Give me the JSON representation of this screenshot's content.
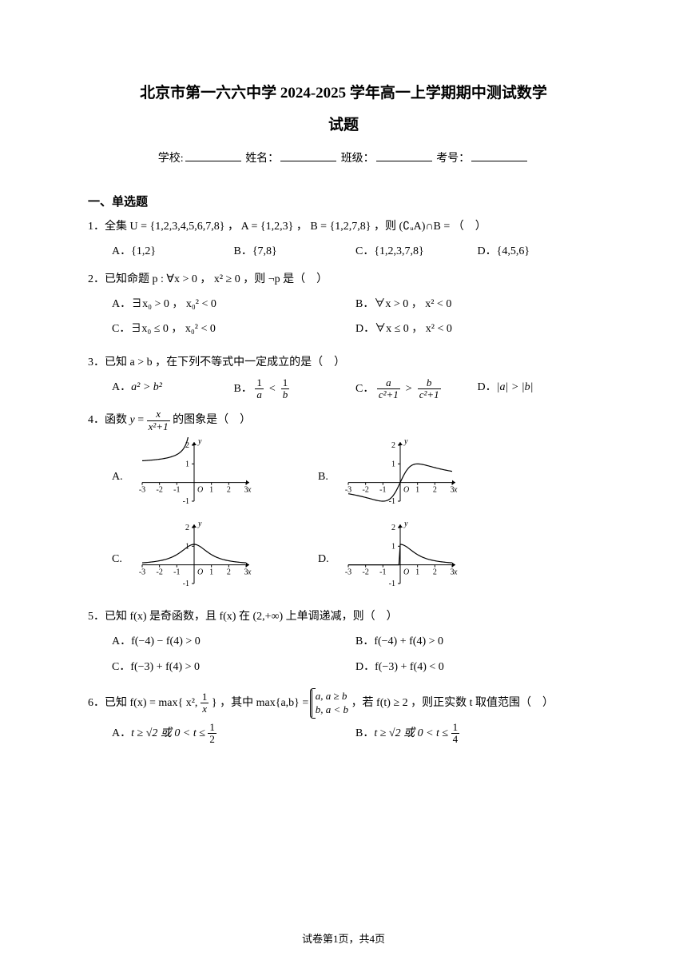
{
  "title": "北京市第一六六中学 2024-2025 学年高一上学期期中测试数学",
  "subtitle": "试题",
  "info": {
    "school_label": "学校:",
    "name_label": "姓名：",
    "class_label": "班级：",
    "exam_no_label": "考号："
  },
  "section1": "一、单选题",
  "q1": {
    "num": "1．",
    "text": "全集 U = {1,2,3,4,5,6,7,8} ， A = {1,2,3} ， B = {1,2,7,8} ，则 (∁ᵤA)∩B = （　）",
    "A": "A．{1,2}",
    "B": "B．{7,8}",
    "C": "C．{1,2,3,7,8}",
    "D": "D．{4,5,6}"
  },
  "q2": {
    "num": "2．",
    "text": "已知命题 p : ∀x > 0 ， x² ≥ 0 ，则 ¬p 是（　）",
    "A": "A．∃x₀ > 0 ， x₀² < 0",
    "B": "B．∀x > 0 ， x² < 0",
    "C": "C．∃x₀ ≤ 0 ， x₀² < 0",
    "D": "D．∀x ≤ 0 ， x² < 0"
  },
  "q3": {
    "num": "3．",
    "text": "已知 a > b ，在下列不等式中一定成立的是（　）",
    "A_label": "A．",
    "A_body": "a² > b²",
    "B_label": "B．",
    "C_label": "C．",
    "D_label": "D．",
    "D_body": "|a| > |b|"
  },
  "q4": {
    "num": "4．",
    "text_pre": "函数 ",
    "text_post": " 的图象是（　）",
    "A": "A.",
    "B": "B.",
    "C": "C.",
    "D": "D.",
    "graph": {
      "width": 150,
      "height": 90,
      "xrange": [
        -3,
        3
      ],
      "yrange": [
        -1,
        2
      ],
      "xticks": [
        -3,
        -2,
        -1,
        1,
        2,
        3
      ],
      "yticks": [
        -1,
        1,
        2
      ],
      "axis_color": "#000000",
      "line_color": "#000000",
      "line_width": 1.2,
      "fontsize": 10
    },
    "curves": {
      "A": "split_asymp",
      "B": "odd_rational",
      "C": "bell",
      "D": "half_bell"
    }
  },
  "q5": {
    "num": "5．",
    "text": "已知 f(x) 是奇函数，且 f(x) 在 (2,+∞) 上单调递减，则（　）",
    "A": "A．f(−4) − f(4) > 0",
    "B": "B．f(−4) + f(4) > 0",
    "C": "C．f(−3) + f(4) > 0",
    "D": "D．f(−3) + f(4) < 0"
  },
  "q6": {
    "num": "6．",
    "text_pre": "已知 f(x) = max{ x², ",
    "text_mid": " } ，其中 max{a,b} = ",
    "text_post": " ，若 f(t) ≥ 2 ，则正实数 t 取值范围（　）",
    "piece1": "a, a ≥ b",
    "piece2": "b, a < b",
    "A_label": "A．",
    "A_body_pre": "t ≥ √2 或 0 < t ≤ ",
    "B_label": "B．",
    "B_body_pre": "t ≥ √2 或 0 < t ≤ "
  },
  "frac_labels": {
    "one": "1",
    "a": "a",
    "b": "b",
    "csq1": "c²+1",
    "x": "x",
    "xsq1": "x²+1",
    "two": "2",
    "four": "4"
  },
  "footer": "试卷第1页，共4页"
}
